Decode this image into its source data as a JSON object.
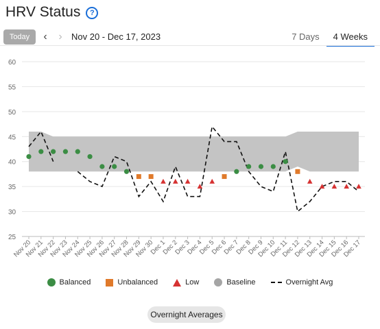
{
  "header": {
    "title": "HRV Status",
    "help_icon": "?"
  },
  "toolbar": {
    "today_label": "Today",
    "prev_icon": "‹",
    "next_icon": "›",
    "date_range": "Nov 20 - Dec 17, 2023",
    "tabs": [
      {
        "label": "7 Days",
        "active": false
      },
      {
        "label": "4 Weeks",
        "active": true
      }
    ]
  },
  "chart_data": {
    "type": "scatter",
    "y_ticks": [
      25,
      30,
      35,
      40,
      45,
      50,
      55,
      60
    ],
    "ylim": [
      25,
      60
    ],
    "grid": true,
    "categories": [
      "Nov 20",
      "Nov 21",
      "Nov 22",
      "Nov 23",
      "Nov 24",
      "Nov 25",
      "Nov 26",
      "Nov 27",
      "Nov 28",
      "Nov 29",
      "Nov 30",
      "Dec 1",
      "Dec 2",
      "Dec 3",
      "Dec 4",
      "Dec 5",
      "Dec 6",
      "Dec 7",
      "Dec 8",
      "Dec 9",
      "Dec 10",
      "Dec 11",
      "Dec 12",
      "Dec 13",
      "Dec 14",
      "Dec 15",
      "Dec 16",
      "Dec 17"
    ],
    "weekly_avg": [
      {
        "status": "balanced",
        "value": 41
      },
      {
        "status": "balanced",
        "value": 42
      },
      {
        "status": "balanced",
        "value": 42
      },
      {
        "status": "balanced",
        "value": 42
      },
      {
        "status": "balanced",
        "value": 42
      },
      {
        "status": "balanced",
        "value": 41
      },
      {
        "status": "balanced",
        "value": 39
      },
      {
        "status": "balanced",
        "value": 39
      },
      {
        "status": "balanced",
        "value": 38
      },
      {
        "status": "unbalanced",
        "value": 37
      },
      {
        "status": "unbalanced",
        "value": 37
      },
      {
        "status": "low",
        "value": 36
      },
      {
        "status": "low",
        "value": 36
      },
      {
        "status": "low",
        "value": 36
      },
      {
        "status": "low",
        "value": 35
      },
      {
        "status": "low",
        "value": 36
      },
      {
        "status": "unbalanced",
        "value": 37
      },
      {
        "status": "balanced",
        "value": 38
      },
      {
        "status": "balanced",
        "value": 39
      },
      {
        "status": "balanced",
        "value": 39
      },
      {
        "status": "balanced",
        "value": 39
      },
      {
        "status": "balanced",
        "value": 40
      },
      {
        "status": "unbalanced",
        "value": 38
      },
      {
        "status": "low",
        "value": 36
      },
      {
        "status": "low",
        "value": 35
      },
      {
        "status": "low",
        "value": 35
      },
      {
        "status": "low",
        "value": 35
      },
      {
        "status": "low",
        "value": 35
      }
    ],
    "baseline": {
      "low": [
        38,
        38,
        38,
        38,
        38,
        38,
        38,
        38,
        38,
        38,
        38,
        38,
        38,
        38,
        38,
        38,
        38,
        38,
        38,
        38,
        38,
        38,
        39,
        38,
        38,
        38,
        38,
        38
      ],
      "high": [
        46,
        46,
        45,
        45,
        45,
        45,
        45,
        45,
        45,
        45,
        45,
        45,
        45,
        45,
        45,
        45,
        45,
        45,
        45,
        45,
        45,
        45,
        46,
        46,
        46,
        46,
        46,
        46
      ]
    },
    "overnight_avg": [
      43,
      46,
      40,
      null,
      38,
      36,
      35,
      41,
      40,
      33,
      36,
      32,
      39,
      33,
      33,
      47,
      44,
      44,
      38,
      35,
      34,
      42,
      30,
      32,
      35,
      36,
      36,
      34
    ],
    "legend": [
      "Balanced",
      "Unbalanced",
      "Low",
      "Baseline",
      "Overnight Avg"
    ]
  },
  "colors": {
    "balanced": "#3b8d44",
    "unbalanced": "#e07a2b",
    "low": "#d63232",
    "baseline": "#c4c4c4",
    "accent": "#1a6ed8"
  },
  "footer": {
    "overnight_button": "Overnight Averages"
  }
}
